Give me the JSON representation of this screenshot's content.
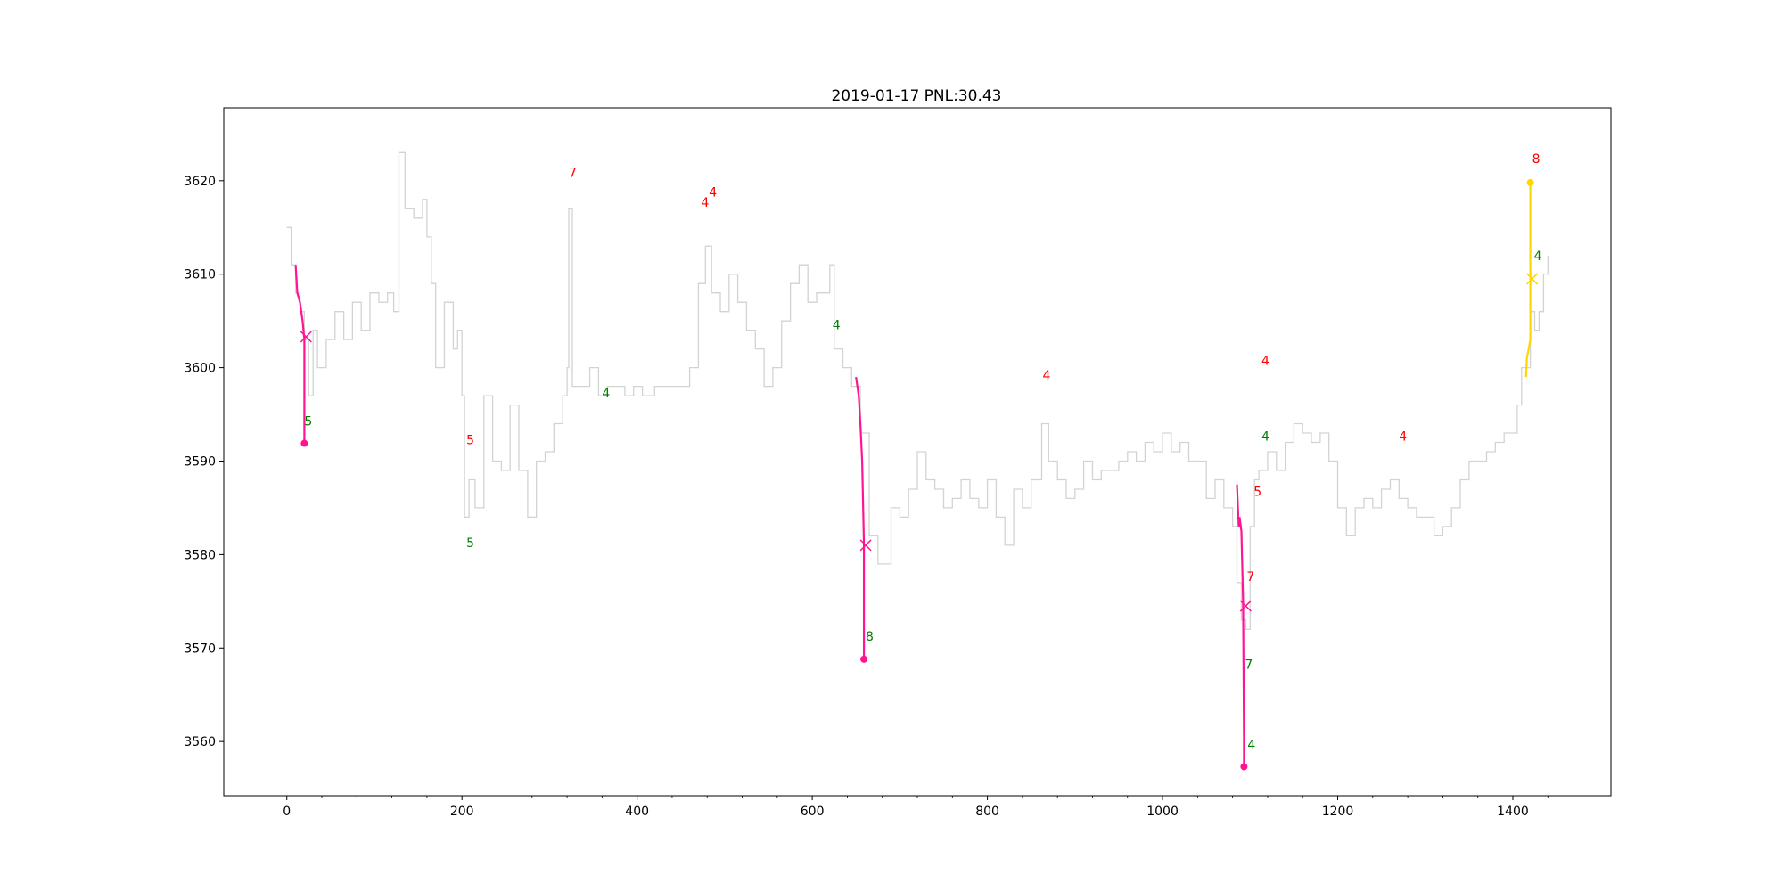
{
  "chart_data": {
    "type": "line",
    "title": "2019-01-17 PNL:30.43",
    "xlabel": "",
    "ylabel": "",
    "xlim": [
      -72,
      1512
    ],
    "ylim": [
      3554.2,
      3627.8
    ],
    "xticks": [
      0,
      200,
      400,
      600,
      800,
      1000,
      1200,
      1400
    ],
    "yticks": [
      3560,
      3570,
      3580,
      3590,
      3600,
      3610,
      3620
    ],
    "grid": false,
    "price_color": "#d3d3d3",
    "price_anchors": [
      [
        0,
        3615
      ],
      [
        5,
        3611
      ],
      [
        10,
        3608
      ],
      [
        15,
        3606
      ],
      [
        20,
        3603
      ],
      [
        25,
        3597
      ],
      [
        30,
        3604
      ],
      [
        35,
        3600
      ],
      [
        45,
        3603
      ],
      [
        55,
        3606
      ],
      [
        65,
        3603
      ],
      [
        75,
        3607
      ],
      [
        85,
        3604
      ],
      [
        95,
        3608
      ],
      [
        105,
        3607
      ],
      [
        115,
        3608
      ],
      [
        122,
        3606
      ],
      [
        128,
        3623
      ],
      [
        135,
        3617
      ],
      [
        145,
        3616
      ],
      [
        155,
        3618
      ],
      [
        160,
        3614
      ],
      [
        165,
        3609
      ],
      [
        170,
        3600
      ],
      [
        180,
        3607
      ],
      [
        190,
        3602
      ],
      [
        195,
        3604
      ],
      [
        200,
        3597
      ],
      [
        203,
        3584
      ],
      [
        208,
        3588
      ],
      [
        215,
        3585
      ],
      [
        225,
        3597
      ],
      [
        235,
        3590
      ],
      [
        245,
        3589
      ],
      [
        255,
        3596
      ],
      [
        265,
        3589
      ],
      [
        275,
        3584
      ],
      [
        285,
        3590
      ],
      [
        295,
        3591
      ],
      [
        305,
        3594
      ],
      [
        315,
        3597
      ],
      [
        320,
        3600
      ],
      [
        322,
        3617
      ],
      [
        326,
        3598
      ],
      [
        336,
        3598
      ],
      [
        346,
        3600
      ],
      [
        356,
        3597
      ],
      [
        366,
        3598
      ],
      [
        376,
        3598
      ],
      [
        386,
        3597
      ],
      [
        396,
        3598
      ],
      [
        406,
        3597
      ],
      [
        420,
        3598
      ],
      [
        440,
        3598
      ],
      [
        460,
        3600
      ],
      [
        470,
        3609
      ],
      [
        478,
        3613
      ],
      [
        485,
        3608
      ],
      [
        495,
        3606
      ],
      [
        505,
        3610
      ],
      [
        515,
        3607
      ],
      [
        525,
        3604
      ],
      [
        535,
        3602
      ],
      [
        545,
        3598
      ],
      [
        555,
        3600
      ],
      [
        565,
        3605
      ],
      [
        575,
        3609
      ],
      [
        585,
        3611
      ],
      [
        595,
        3607
      ],
      [
        605,
        3608
      ],
      [
        615,
        3608
      ],
      [
        620,
        3611
      ],
      [
        625,
        3602
      ],
      [
        635,
        3600
      ],
      [
        645,
        3598
      ],
      [
        655,
        3593
      ],
      [
        665,
        3582
      ],
      [
        675,
        3579
      ],
      [
        690,
        3585
      ],
      [
        700,
        3584
      ],
      [
        710,
        3587
      ],
      [
        720,
        3591
      ],
      [
        730,
        3588
      ],
      [
        740,
        3587
      ],
      [
        750,
        3585
      ],
      [
        760,
        3586
      ],
      [
        770,
        3588
      ],
      [
        780,
        3586
      ],
      [
        790,
        3585
      ],
      [
        800,
        3588
      ],
      [
        810,
        3584
      ],
      [
        820,
        3581
      ],
      [
        830,
        3587
      ],
      [
        840,
        3585
      ],
      [
        850,
        3588
      ],
      [
        862,
        3594
      ],
      [
        870,
        3590
      ],
      [
        880,
        3588
      ],
      [
        890,
        3586
      ],
      [
        900,
        3587
      ],
      [
        910,
        3590
      ],
      [
        920,
        3588
      ],
      [
        930,
        3589
      ],
      [
        940,
        3589
      ],
      [
        950,
        3590
      ],
      [
        960,
        3591
      ],
      [
        970,
        3590
      ],
      [
        980,
        3592
      ],
      [
        990,
        3591
      ],
      [
        1000,
        3593
      ],
      [
        1010,
        3591
      ],
      [
        1020,
        3592
      ],
      [
        1030,
        3590
      ],
      [
        1040,
        3590
      ],
      [
        1050,
        3586
      ],
      [
        1060,
        3588
      ],
      [
        1070,
        3585
      ],
      [
        1080,
        3583
      ],
      [
        1085,
        3577
      ],
      [
        1090,
        3573
      ],
      [
        1095,
        3572
      ],
      [
        1100,
        3583
      ],
      [
        1105,
        3588
      ],
      [
        1110,
        3589
      ],
      [
        1120,
        3591
      ],
      [
        1130,
        3589
      ],
      [
        1140,
        3592
      ],
      [
        1150,
        3594
      ],
      [
        1160,
        3593
      ],
      [
        1170,
        3592
      ],
      [
        1180,
        3593
      ],
      [
        1190,
        3590
      ],
      [
        1200,
        3585
      ],
      [
        1210,
        3582
      ],
      [
        1220,
        3585
      ],
      [
        1230,
        3586
      ],
      [
        1240,
        3585
      ],
      [
        1250,
        3587
      ],
      [
        1260,
        3588
      ],
      [
        1270,
        3586
      ],
      [
        1280,
        3585
      ],
      [
        1290,
        3584
      ],
      [
        1300,
        3584
      ],
      [
        1310,
        3582
      ],
      [
        1320,
        3583
      ],
      [
        1330,
        3585
      ],
      [
        1340,
        3588
      ],
      [
        1350,
        3590
      ],
      [
        1360,
        3590
      ],
      [
        1370,
        3591
      ],
      [
        1380,
        3592
      ],
      [
        1390,
        3593
      ],
      [
        1395,
        3593
      ],
      [
        1400,
        3593
      ],
      [
        1405,
        3596
      ],
      [
        1410,
        3600
      ],
      [
        1415,
        3600
      ],
      [
        1420,
        3606
      ],
      [
        1425,
        3604
      ],
      [
        1430,
        3606
      ],
      [
        1435,
        3610
      ],
      [
        1440,
        3612
      ]
    ],
    "trades": [
      {
        "color": "#ff1493",
        "line": [
          [
            10,
            3611
          ],
          [
            12,
            3608
          ],
          [
            15,
            3607
          ],
          [
            18,
            3605
          ],
          [
            20,
            3603
          ],
          [
            20,
            3592
          ]
        ],
        "exit": [
          20,
          3591.9
        ],
        "cross": [
          22,
          3603.3
        ]
      },
      {
        "color": "#ff1493",
        "line": [
          [
            650,
            3599
          ],
          [
            653,
            3597
          ],
          [
            655,
            3594
          ],
          [
            657,
            3590
          ],
          [
            659,
            3581
          ],
          [
            659,
            3569
          ]
        ],
        "exit": [
          659,
          3568.8
        ],
        "cross": [
          661,
          3581
        ]
      },
      {
        "color": "#ff1493",
        "line": [
          [
            1085,
            3587.5
          ],
          [
            1087,
            3583
          ],
          [
            1088,
            3584
          ],
          [
            1090,
            3582.5
          ],
          [
            1092,
            3575
          ],
          [
            1093,
            3560
          ],
          [
            1093,
            3557.3
          ]
        ],
        "exit": [
          1093,
          3557.3
        ],
        "cross": [
          1095,
          3574.5
        ]
      },
      {
        "color": "#ffd700",
        "line": [
          [
            1415,
            3599
          ],
          [
            1416,
            3601
          ],
          [
            1418,
            3602
          ],
          [
            1420,
            3603
          ],
          [
            1420,
            3609
          ],
          [
            1420,
            3619.5
          ]
        ],
        "exit": [
          1420,
          3619.8
        ],
        "cross": [
          1422,
          3609.5
        ]
      }
    ],
    "annotations": [
      {
        "text": "5",
        "x": 20,
        "y": 3593.8,
        "color": "green"
      },
      {
        "text": "5",
        "x": 205,
        "y": 3591.8,
        "color": "red"
      },
      {
        "text": "5",
        "x": 205,
        "y": 3580.8,
        "color": "green"
      },
      {
        "text": "7",
        "x": 322,
        "y": 3620.4,
        "color": "red"
      },
      {
        "text": "4",
        "x": 360,
        "y": 3596.8,
        "color": "green"
      },
      {
        "text": "4",
        "x": 473,
        "y": 3617.2,
        "color": "red"
      },
      {
        "text": "4",
        "x": 482,
        "y": 3618.3,
        "color": "red"
      },
      {
        "text": "4",
        "x": 623,
        "y": 3604.1,
        "color": "green"
      },
      {
        "text": "8",
        "x": 661,
        "y": 3570.8,
        "color": "green"
      },
      {
        "text": "4",
        "x": 863,
        "y": 3598.7,
        "color": "red"
      },
      {
        "text": "4",
        "x": 1113,
        "y": 3600.3,
        "color": "red"
      },
      {
        "text": "4",
        "x": 1113,
        "y": 3592.2,
        "color": "green"
      },
      {
        "text": "5",
        "x": 1104,
        "y": 3586.3,
        "color": "red"
      },
      {
        "text": "7",
        "x": 1096,
        "y": 3577.2,
        "color": "red"
      },
      {
        "text": "7",
        "x": 1094,
        "y": 3567.8,
        "color": "green"
      },
      {
        "text": "4",
        "x": 1097,
        "y": 3559.2,
        "color": "green"
      },
      {
        "text": "4",
        "x": 1270,
        "y": 3592.2,
        "color": "red"
      },
      {
        "text": "8",
        "x": 1422,
        "y": 3621.9,
        "color": "red"
      },
      {
        "text": "4",
        "x": 1424,
        "y": 3611.5,
        "color": "green"
      }
    ]
  }
}
